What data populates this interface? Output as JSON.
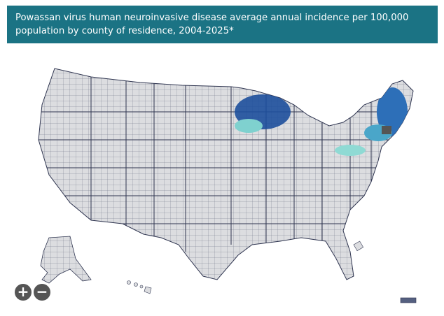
{
  "header": {
    "title": "Powassan virus human neuroinvasive disease average annual incidence per 100,000 population by county of residence, 2004-2025*"
  },
  "controls": {
    "zoom_in": "+",
    "zoom_out": "−"
  }
}
